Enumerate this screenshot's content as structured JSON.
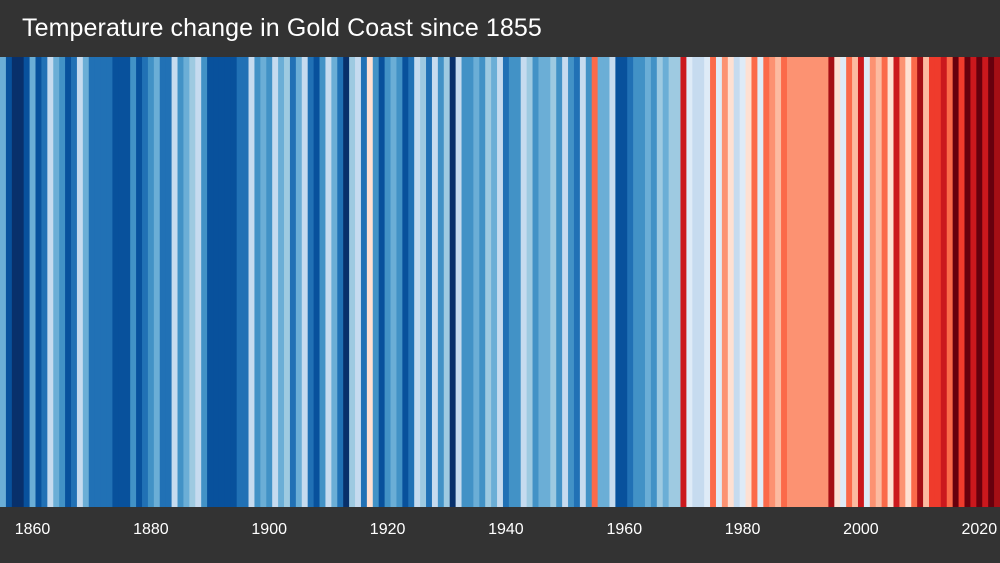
{
  "chart_data": {
    "type": "heatmap",
    "title": "Temperature change in Gold Coast since 1855",
    "x_start": 1855,
    "x_end": 2023,
    "xticks": [
      1860,
      1880,
      1900,
      1920,
      1940,
      1960,
      1980,
      2000,
      2020
    ],
    "palette": [
      "#08306b",
      "#08519c",
      "#2171b5",
      "#4292c6",
      "#6baed6",
      "#9ecae1",
      "#c6dbef",
      "#deebf7",
      "#fee0d2",
      "#fcbba1",
      "#fc9272",
      "#fb6a4a",
      "#ef3b2c",
      "#cb181d",
      "#a50f15",
      "#67000d"
    ],
    "stripe_levels": [
      4,
      1,
      0,
      0,
      1,
      4,
      1,
      2,
      6,
      4,
      3,
      1,
      2,
      6,
      4,
      2,
      2,
      2,
      2,
      1,
      1,
      1,
      3,
      1,
      2,
      3,
      4,
      2,
      2,
      6,
      3,
      4,
      5,
      6,
      3,
      1,
      1,
      1,
      1,
      1,
      2,
      2,
      6,
      3,
      4,
      3,
      6,
      4,
      5,
      2,
      4,
      6,
      2,
      1,
      3,
      6,
      4,
      2,
      0,
      5,
      6,
      2,
      8,
      3,
      1,
      3,
      4,
      3,
      1,
      2,
      6,
      5,
      2,
      6,
      3,
      5,
      0,
      6,
      3,
      3,
      4,
      3,
      5,
      4,
      6,
      2,
      3,
      3,
      6,
      5,
      3,
      4,
      4,
      5,
      3,
      6,
      3,
      2,
      6,
      3,
      11,
      4,
      4,
      6,
      1,
      1,
      2,
      3,
      3,
      4,
      3,
      5,
      4,
      5,
      5,
      13,
      7,
      6,
      6,
      7,
      11,
      7,
      10,
      8,
      6,
      7,
      8,
      11,
      7,
      11,
      10,
      9,
      11,
      10,
      10,
      10,
      10,
      10,
      10,
      10,
      14,
      8,
      7,
      11,
      9,
      13,
      7,
      10,
      9,
      11,
      8,
      13,
      10,
      8,
      11,
      14,
      9,
      12,
      12,
      13,
      11,
      15,
      12,
      15,
      13,
      15,
      13,
      15,
      14
    ]
  }
}
